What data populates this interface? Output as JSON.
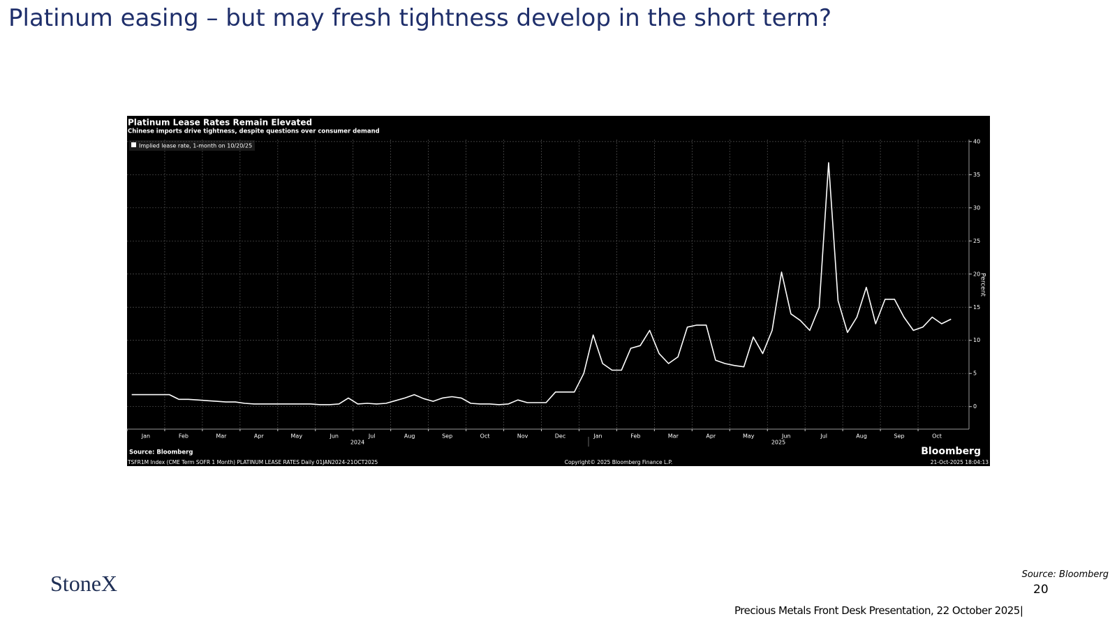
{
  "slide": {
    "title": "Platinum easing – but may fresh tightness develop in the short term?",
    "logo": "StoneX",
    "source": "Source: Bloomberg",
    "page_number": "20",
    "footer": "Precious Metals Front Desk Presentation, 22 October 2025|"
  },
  "chart_data": {
    "type": "line",
    "title": "Platinum Lease Rates Remain Elevated",
    "subtitle": "Chinese imports drive tightness, despite questions over consumer demand",
    "y_label": "Percent",
    "year_labels": [
      "2024",
      "2025"
    ],
    "source": "Source: Bloomberg",
    "footer": "TSFR1M Index (CME Term SOFR 1 Month) PLATINUM LEASE RATES Daily 01JAN2024-21OCT2025",
    "copyright": "Copyright© 2025 Bloomberg Finance L.P.",
    "timestamp": "21-Oct-2025 18:04:13",
    "brand": "Bloomberg",
    "categories": [
      "Jan",
      null,
      null,
      null,
      "Feb",
      null,
      null,
      null,
      "Mar",
      null,
      null,
      null,
      "Apr",
      null,
      null,
      null,
      "May",
      null,
      null,
      null,
      "Jun",
      null,
      null,
      null,
      "Jul",
      null,
      null,
      null,
      "Aug",
      null,
      null,
      null,
      "Sep",
      null,
      null,
      null,
      "Oct",
      null,
      null,
      null,
      "Nov",
      null,
      null,
      null,
      "Dec",
      null,
      null,
      null,
      "Jan",
      null,
      null,
      null,
      "Feb",
      null,
      null,
      null,
      "Mar",
      null,
      null,
      null,
      "Apr",
      null,
      null,
      null,
      "May",
      null,
      null,
      null,
      "Jun",
      null,
      null,
      null,
      "Jul",
      null,
      null,
      null,
      "Aug",
      null,
      null,
      null,
      "Sep",
      null,
      null,
      null,
      "Oct",
      null,
      null,
      null
    ],
    "series": [
      {
        "name": "Implied lease rate, 1-month on 10/20/25",
        "color": "#ffffff",
        "values": [
          1.8,
          1.8,
          1.8,
          1.8,
          1.8,
          1.1,
          1.1,
          1.0,
          0.9,
          0.8,
          0.7,
          0.7,
          0.5,
          0.4,
          0.4,
          0.4,
          0.4,
          0.4,
          0.4,
          0.4,
          0.3,
          0.3,
          0.4,
          1.3,
          0.4,
          0.5,
          0.4,
          0.5,
          0.9,
          1.3,
          1.8,
          1.2,
          0.8,
          1.3,
          1.5,
          1.3,
          0.5,
          0.4,
          0.4,
          0.3,
          0.4,
          1.0,
          0.6,
          0.6,
          0.6,
          2.2,
          2.2,
          2.2,
          5.0,
          10.8,
          6.5,
          5.5,
          5.5,
          8.8,
          9.2,
          11.5,
          8.0,
          6.5,
          7.5,
          12.0,
          12.3,
          12.3,
          7.0,
          6.5,
          6.2,
          6.0,
          10.5,
          8.0,
          11.5,
          20.3,
          14.0,
          13.0,
          11.5,
          15.0,
          36.8,
          16.0,
          11.2,
          13.5,
          18.0,
          12.5,
          16.2,
          16.2,
          13.5,
          11.5,
          12.0,
          13.5,
          12.5,
          13.2
        ]
      }
    ],
    "ylim": [
      -3.4,
      40.3
    ],
    "yticks": [
      0,
      5,
      10,
      15,
      20,
      25,
      30,
      35,
      40
    ],
    "grid": true
  }
}
